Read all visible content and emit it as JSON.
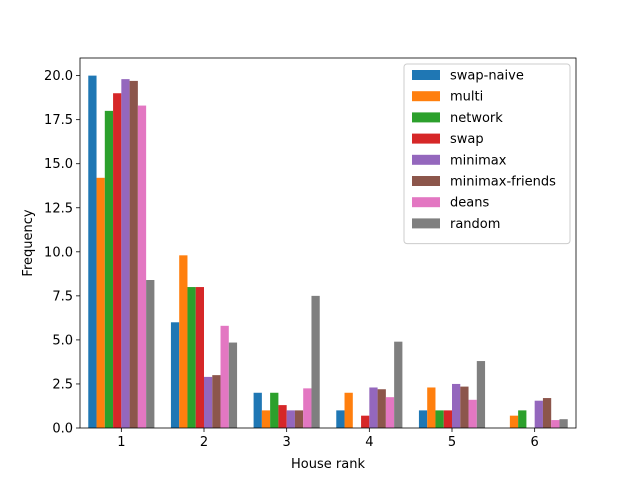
{
  "chart_data": {
    "type": "bar",
    "xlabel": "House rank",
    "ylabel": "Frequency",
    "categories": [
      "1",
      "2",
      "3",
      "4",
      "5",
      "6"
    ],
    "ylim": [
      0,
      21
    ],
    "yticks": [
      0.0,
      2.5,
      5.0,
      7.5,
      10.0,
      12.5,
      15.0,
      17.5,
      20.0
    ],
    "ytick_labels": [
      "0.0",
      "2.5",
      "5.0",
      "7.5",
      "10.0",
      "12.5",
      "15.0",
      "17.5",
      "20.0"
    ],
    "grid": false,
    "legend_position": "top-right",
    "series": [
      {
        "name": "swap-naive",
        "color": "#1f77b4",
        "values": [
          20.0,
          6.0,
          2.0,
          1.0,
          1.0,
          0.0
        ]
      },
      {
        "name": "multi",
        "color": "#ff7f0e",
        "values": [
          14.2,
          9.8,
          1.0,
          2.0,
          2.3,
          0.7
        ]
      },
      {
        "name": "network",
        "color": "#2ca02c",
        "values": [
          18.0,
          8.0,
          2.0,
          0.0,
          1.0,
          1.0
        ]
      },
      {
        "name": "swap",
        "color": "#d62728",
        "values": [
          19.0,
          8.0,
          1.3,
          0.7,
          1.0,
          0.0
        ]
      },
      {
        "name": "minimax",
        "color": "#9467bd",
        "values": [
          19.8,
          2.9,
          1.0,
          2.3,
          2.5,
          1.55
        ]
      },
      {
        "name": "minimax-friends",
        "color": "#8c564b",
        "values": [
          19.7,
          3.0,
          1.0,
          2.2,
          2.35,
          1.7
        ]
      },
      {
        "name": "deans",
        "color": "#e377c2",
        "values": [
          18.3,
          5.8,
          2.25,
          1.75,
          1.6,
          0.45
        ]
      },
      {
        "name": "random",
        "color": "#7f7f7f",
        "values": [
          8.4,
          4.85,
          7.5,
          4.9,
          3.8,
          0.5
        ]
      }
    ]
  }
}
